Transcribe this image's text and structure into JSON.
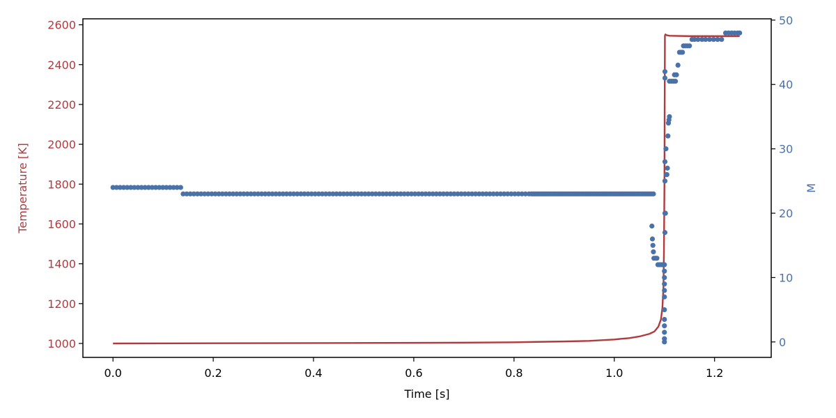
{
  "chart_data": {
    "type": "line+scatter",
    "title": "",
    "xlabel": "Time [s]",
    "ylabel_left": "Temperature [K]",
    "ylabel_right": "M",
    "xlim": [
      -0.06,
      1.313
    ],
    "ylim_left": [
      930,
      2630
    ],
    "ylim_right": [
      -2.4,
      50.2
    ],
    "x_ticks": [
      0.0,
      0.2,
      0.4,
      0.6,
      0.8,
      1.0,
      1.2
    ],
    "x_tick_labels": [
      "0.0",
      "0.2",
      "0.4",
      "0.6",
      "0.8",
      "1.0",
      "1.2"
    ],
    "y_left_ticks": [
      1000,
      1200,
      1400,
      1600,
      1800,
      2000,
      2200,
      2400,
      2600
    ],
    "y_left_tick_labels": [
      "1000",
      "1200",
      "1400",
      "1600",
      "1800",
      "2000",
      "2200",
      "2400",
      "2600"
    ],
    "y_right_ticks": [
      0,
      10,
      20,
      30,
      40,
      50
    ],
    "y_right_tick_labels": [
      "0",
      "10",
      "20",
      "30",
      "40",
      "50"
    ],
    "grid": false,
    "legend": "none",
    "colors": {
      "temperature": "#b03a3e",
      "M": "#4a72a8",
      "axes": "#000000"
    },
    "series": [
      {
        "kind": "line",
        "axis": "left",
        "x": [
          0.0,
          0.2,
          0.4,
          0.6,
          0.7,
          0.8,
          0.9,
          0.95,
          1.0,
          1.03,
          1.05,
          1.07,
          1.08,
          1.088,
          1.093,
          1.096,
          1.098,
          1.099,
          1.1,
          1.1005,
          1.101,
          1.102,
          1.104,
          1.11,
          1.15,
          1.25
        ],
        "y": [
          1000,
          1001,
          1002,
          1003,
          1004,
          1006,
          1010,
          1013,
          1020,
          1027,
          1035,
          1048,
          1060,
          1085,
          1120,
          1180,
          1280,
          1450,
          1800,
          2200,
          2545,
          2552,
          2548,
          2545,
          2543,
          2543
        ]
      },
      {
        "kind": "scatter",
        "axis": "right",
        "segments": [
          {
            "x_start": 0.0,
            "x_end": 0.135,
            "count": 20,
            "y": 24
          },
          {
            "x_start": 0.14,
            "x_end": 0.83,
            "count": 98,
            "y": 23
          },
          {
            "x_start": 0.835,
            "x_end": 1.078,
            "count": 80,
            "y": 23
          }
        ],
        "points": [
          [
            1.075,
            18
          ],
          [
            1.076,
            16
          ],
          [
            1.077,
            15
          ],
          [
            1.078,
            14
          ],
          [
            1.079,
            13
          ],
          [
            1.082,
            13
          ],
          [
            1.085,
            13
          ],
          [
            1.087,
            12
          ],
          [
            1.09,
            12
          ],
          [
            1.093,
            12
          ],
          [
            1.096,
            12
          ],
          [
            1.099,
            12
          ],
          [
            1.1,
            0
          ],
          [
            1.1,
            0.5
          ],
          [
            1.1,
            1.5
          ],
          [
            1.1,
            2.5
          ],
          [
            1.1,
            3.5
          ],
          [
            1.1,
            5
          ],
          [
            1.1,
            7
          ],
          [
            1.1,
            8
          ],
          [
            1.1,
            9
          ],
          [
            1.1,
            10
          ],
          [
            1.1,
            11
          ],
          [
            1.1,
            12
          ],
          [
            1.101,
            17
          ],
          [
            1.101,
            20
          ],
          [
            1.101,
            25
          ],
          [
            1.101,
            28
          ],
          [
            1.101,
            41
          ],
          [
            1.101,
            42
          ],
          [
            1.102,
            20
          ],
          [
            1.103,
            30
          ],
          [
            1.104,
            26
          ],
          [
            1.105,
            26
          ],
          [
            1.106,
            27
          ],
          [
            1.107,
            32
          ],
          [
            1.108,
            34
          ],
          [
            1.109,
            34.5
          ],
          [
            1.11,
            35
          ],
          [
            1.11,
            40.5
          ],
          [
            1.114,
            40.5
          ],
          [
            1.118,
            40.5
          ],
          [
            1.122,
            40.5
          ],
          [
            1.12,
            41.5
          ],
          [
            1.124,
            41.5
          ],
          [
            1.127,
            43
          ],
          [
            1.13,
            45
          ],
          [
            1.133,
            45
          ],
          [
            1.136,
            45
          ],
          [
            1.138,
            46
          ],
          [
            1.142,
            46
          ],
          [
            1.146,
            46
          ],
          [
            1.15,
            46
          ],
          [
            1.155,
            47
          ],
          [
            1.16,
            47
          ],
          [
            1.167,
            47
          ],
          [
            1.175,
            47
          ],
          [
            1.182,
            47
          ],
          [
            1.19,
            47
          ],
          [
            1.198,
            47
          ],
          [
            1.206,
            47
          ],
          [
            1.214,
            47
          ],
          [
            1.222,
            48
          ],
          [
            1.228,
            48
          ],
          [
            1.234,
            48
          ],
          [
            1.24,
            48
          ],
          [
            1.246,
            48
          ],
          [
            1.25,
            48
          ]
        ]
      }
    ]
  }
}
